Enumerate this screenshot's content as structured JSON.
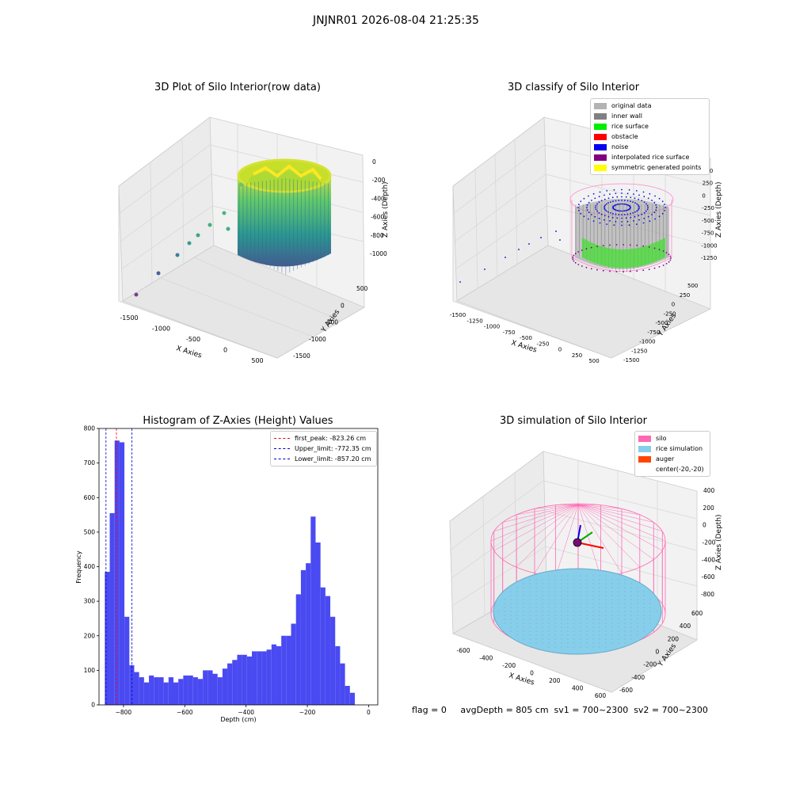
{
  "suptitle": "JNJNR01 2026-08-04 21:25:35",
  "panels": {
    "raw": {
      "title": "3D Plot of Silo Interior(row data)",
      "xlabel": "X Axies",
      "ylabel": "Y Axies",
      "zlabel": "Z Axies (Depth)",
      "xticks": [
        "-1500",
        "-1000",
        "-500",
        "0",
        "500"
      ],
      "yticks": [
        "500",
        "0",
        "-500",
        "-1000",
        "-1500"
      ],
      "zticks": [
        "0",
        "-200",
        "-400",
        "-600",
        "-800",
        "-1000"
      ]
    },
    "classify": {
      "title": "3D classify of Silo Interior",
      "xlabel": "X Axies",
      "ylabel": "Y Axies",
      "zlabel": "Z Axies (Depth)",
      "xticks": [
        "-1500",
        "-1250",
        "-1000",
        "-750",
        "-500",
        "-250",
        "0",
        "250",
        "500"
      ],
      "yticks": [
        "500",
        "250",
        "0",
        "-250",
        "-500",
        "-750",
        "-1000",
        "-1250",
        "-1500"
      ],
      "zticks": [
        "500",
        "250",
        "0",
        "-250",
        "-500",
        "-750",
        "-1000",
        "-1250"
      ],
      "legend": [
        {
          "label": "original data",
          "color": "#b3b3b3"
        },
        {
          "label": "inner wall",
          "color": "#808080"
        },
        {
          "label": "rice surface",
          "color": "#00ee00"
        },
        {
          "label": "obstacle",
          "color": "#ff0000"
        },
        {
          "label": "noise",
          "color": "#0000ee"
        },
        {
          "label": "interpolated rice surface",
          "color": "#800080"
        },
        {
          "label": "symmetric generated points",
          "color": "#ffff00"
        }
      ]
    },
    "histogram": {
      "title": "Histogram of Z-Axies (Height) Values",
      "legend": [
        {
          "label": "first_peak: -823.26 cm",
          "color": "#ff0000"
        },
        {
          "label": "Upper_limit: -772.35 cm",
          "color": "#0000cc"
        },
        {
          "label": "Lower_limit: -857.20 cm",
          "color": "#0000cc"
        }
      ]
    },
    "simulation": {
      "title": "3D simulation of Silo Interior",
      "xlabel": "X Axies",
      "ylabel": "Y Axies",
      "zlabel": "Z Axies (Depth)",
      "xticks": [
        "-600",
        "-400",
        "-200",
        "0",
        "200",
        "400",
        "600"
      ],
      "yticks": [
        "600",
        "400",
        "200",
        "0",
        "-200",
        "-400",
        "-600"
      ],
      "zticks": [
        "400",
        "200",
        "0",
        "-200",
        "-400",
        "-600",
        "-800"
      ],
      "legend": [
        {
          "label": "silo",
          "color": "#ff69b4"
        },
        {
          "label": "rice simulation",
          "color": "#87ceeb"
        },
        {
          "label": "auger",
          "color": "#ff4500"
        },
        {
          "label": "center(-20,-20)",
          "color": ""
        }
      ],
      "status": "flag = 0     avgDepth = 805 cm  sv1 = 700~2300  sv2 = 700~2300"
    }
  },
  "chart_data": [
    {
      "type": "bar",
      "title": "Histogram of Z-Axies (Height) Values",
      "xlabel": "Depth (cm)",
      "ylabel": "Frequency",
      "xlim": [
        -880,
        30
      ],
      "ylim": [
        0,
        800
      ],
      "xticks": [
        -800,
        -600,
        -400,
        -200,
        0
      ],
      "yticks": [
        0,
        100,
        200,
        300,
        400,
        500,
        600,
        700,
        800
      ],
      "bin_width": 16,
      "bin_starts": [
        -861,
        -845,
        -829,
        -813,
        -797,
        -781,
        -765,
        -749,
        -733,
        -717,
        -701,
        -685,
        -669,
        -653,
        -637,
        -621,
        -605,
        -589,
        -573,
        -557,
        -541,
        -525,
        -509,
        -493,
        -477,
        -461,
        -445,
        -429,
        -413,
        -397,
        -381,
        -365,
        -349,
        -333,
        -317,
        -301,
        -285,
        -269,
        -253,
        -237,
        -221,
        -205,
        -189,
        -173,
        -157,
        -141,
        -125,
        -109,
        -93,
        -77,
        -61,
        -45,
        -29,
        -13
      ],
      "values": [
        385,
        555,
        765,
        760,
        255,
        115,
        95,
        80,
        65,
        85,
        80,
        80,
        65,
        80,
        65,
        75,
        85,
        85,
        80,
        75,
        100,
        100,
        90,
        80,
        105,
        120,
        130,
        145,
        145,
        140,
        155,
        155,
        155,
        160,
        175,
        170,
        200,
        200,
        235,
        320,
        390,
        410,
        545,
        470,
        340,
        315,
        255,
        170,
        120,
        55,
        35,
        0,
        0,
        0
      ],
      "vlines": [
        {
          "label": "first_peak: -823.26 cm",
          "x": -823.26,
          "color": "#ff0000"
        },
        {
          "label": "Upper_limit: -772.35 cm",
          "x": -772.35,
          "color": "#0000cc"
        },
        {
          "label": "Lower_limit: -857.20 cm",
          "x": -857.2,
          "color": "#0000cc"
        }
      ],
      "bar_color": "#4a4af2",
      "grid": false,
      "legend_position": "top-right"
    }
  ]
}
